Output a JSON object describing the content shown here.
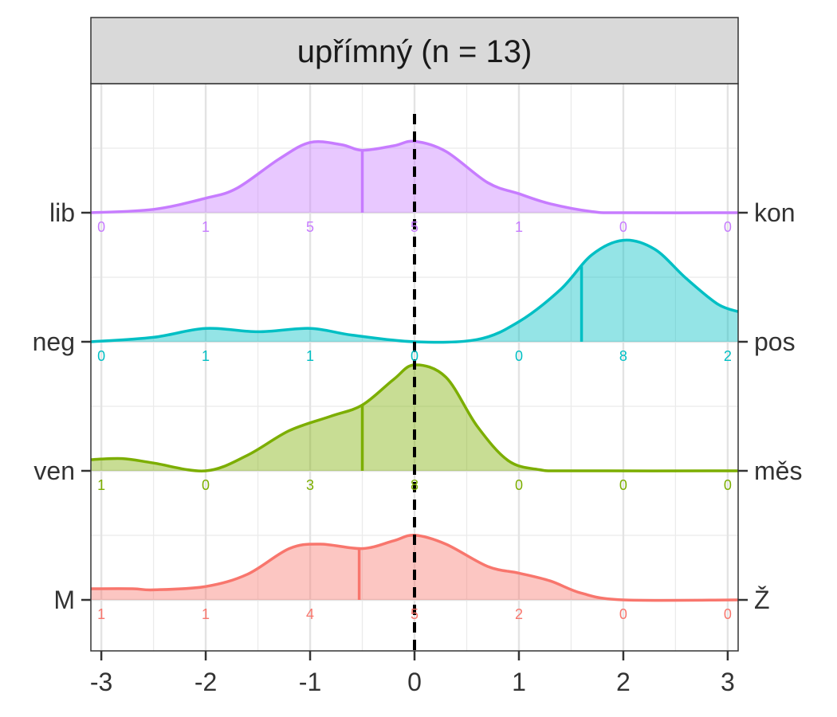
{
  "chart_data": {
    "type": "ridgeline",
    "facet_title": "upřímný (n = 13)",
    "xlim": [
      -3.1,
      3.1
    ],
    "x_ticks": [
      -3,
      -2,
      -1,
      0,
      1,
      2,
      3
    ],
    "x_tick_labels": [
      "-3",
      "-2",
      "-1",
      "0",
      "1",
      "2",
      "3"
    ],
    "reference_line_x": 0,
    "grid": true,
    "series": [
      {
        "left_label": "lib",
        "right_label": "kon",
        "color": "#C77CFF",
        "median": -0.5,
        "counts": [
          0,
          1,
          5,
          5,
          1,
          0,
          0
        ],
        "count_labels": [
          "0",
          "1",
          "5",
          "5",
          "1",
          "0",
          "0"
        ],
        "density": [
          [
            -3.1,
            0.0
          ],
          [
            -2.5,
            0.03
          ],
          [
            -2.0,
            0.13
          ],
          [
            -1.7,
            0.22
          ],
          [
            -1.3,
            0.48
          ],
          [
            -1.0,
            0.63
          ],
          [
            -0.7,
            0.61
          ],
          [
            -0.5,
            0.56
          ],
          [
            -0.2,
            0.6
          ],
          [
            0.0,
            0.64
          ],
          [
            0.3,
            0.55
          ],
          [
            0.7,
            0.27
          ],
          [
            1.0,
            0.17
          ],
          [
            1.3,
            0.08
          ],
          [
            1.7,
            0.01
          ],
          [
            2.0,
            0.0
          ],
          [
            3.1,
            0.0
          ]
        ]
      },
      {
        "left_label": "neg",
        "right_label": "pos",
        "color": "#00BFC4",
        "median": 1.6,
        "counts": [
          0,
          1,
          1,
          0,
          0,
          8,
          2
        ],
        "count_labels": [
          "0",
          "1",
          "1",
          "0",
          "0",
          "8",
          "2"
        ],
        "density": [
          [
            -3.1,
            0.0
          ],
          [
            -2.5,
            0.04
          ],
          [
            -2.0,
            0.12
          ],
          [
            -1.5,
            0.09
          ],
          [
            -1.0,
            0.12
          ],
          [
            -0.6,
            0.06
          ],
          [
            0.0,
            0.0
          ],
          [
            0.6,
            0.02
          ],
          [
            1.0,
            0.18
          ],
          [
            1.4,
            0.47
          ],
          [
            1.7,
            0.78
          ],
          [
            2.0,
            0.91
          ],
          [
            2.3,
            0.83
          ],
          [
            2.6,
            0.57
          ],
          [
            2.9,
            0.34
          ],
          [
            3.1,
            0.27
          ]
        ]
      },
      {
        "left_label": "ven",
        "right_label": "měs",
        "color": "#7CAE00",
        "median": -0.5,
        "counts": [
          1,
          0,
          3,
          8,
          0,
          0,
          0
        ],
        "count_labels": [
          "1",
          "0",
          "3",
          "8",
          "0",
          "0",
          "0"
        ],
        "density": [
          [
            -3.1,
            0.1
          ],
          [
            -2.8,
            0.11
          ],
          [
            -2.5,
            0.07
          ],
          [
            -2.0,
            0.0
          ],
          [
            -1.6,
            0.14
          ],
          [
            -1.2,
            0.36
          ],
          [
            -0.8,
            0.49
          ],
          [
            -0.5,
            0.59
          ],
          [
            -0.2,
            0.82
          ],
          [
            0.0,
            0.95
          ],
          [
            0.3,
            0.84
          ],
          [
            0.6,
            0.4
          ],
          [
            0.9,
            0.09
          ],
          [
            1.2,
            0.01
          ],
          [
            1.5,
            0.0
          ],
          [
            3.1,
            0.0
          ]
        ]
      },
      {
        "left_label": "M",
        "right_label": "Ž",
        "color": "#F8766D",
        "median": -0.53,
        "counts": [
          1,
          1,
          4,
          5,
          2,
          0,
          0
        ],
        "count_labels": [
          "1",
          "1",
          "4",
          "5",
          "2",
          "0",
          "0"
        ],
        "density": [
          [
            -3.1,
            0.1
          ],
          [
            -2.7,
            0.1
          ],
          [
            -2.5,
            0.09
          ],
          [
            -2.0,
            0.12
          ],
          [
            -1.6,
            0.23
          ],
          [
            -1.2,
            0.46
          ],
          [
            -0.9,
            0.5
          ],
          [
            -0.5,
            0.46
          ],
          [
            -0.2,
            0.53
          ],
          [
            0.0,
            0.58
          ],
          [
            0.3,
            0.5
          ],
          [
            0.7,
            0.3
          ],
          [
            1.0,
            0.24
          ],
          [
            1.3,
            0.17
          ],
          [
            1.6,
            0.06
          ],
          [
            2.0,
            0.0
          ],
          [
            3.1,
            0.0
          ]
        ]
      }
    ]
  }
}
